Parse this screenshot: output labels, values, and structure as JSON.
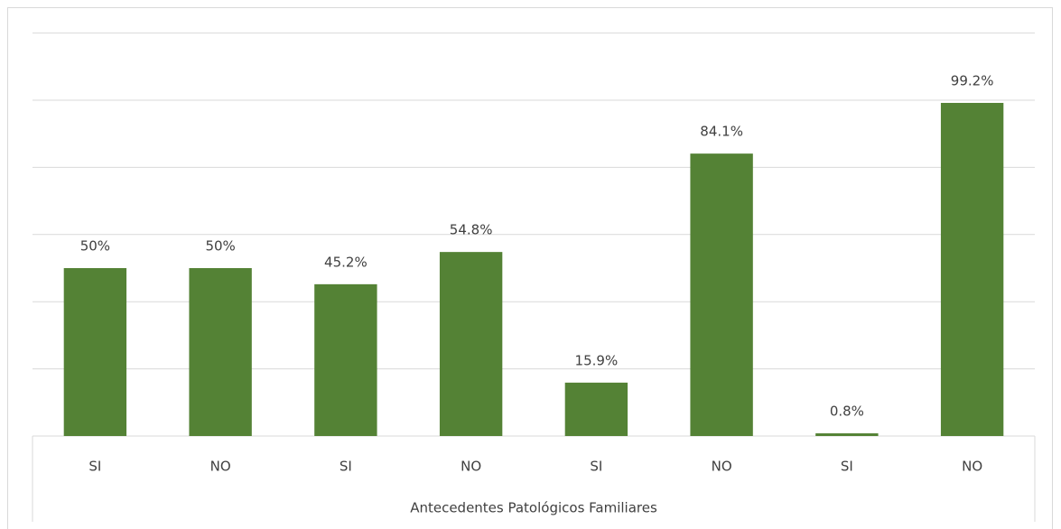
{
  "chart_data": {
    "type": "bar",
    "x_label": "Antecedentes Patológicos Familiares",
    "categories": [
      "SI",
      "NO",
      "SI",
      "NO",
      "SI",
      "NO",
      "SI",
      "NO"
    ],
    "values": [
      50,
      50,
      45.2,
      54.8,
      15.9,
      84.1,
      0.8,
      99.2
    ],
    "value_labels": [
      "50%",
      "50%",
      "45.2%",
      "54.8%",
      "15.9%",
      "84.1%",
      "0.8%",
      "99.2%"
    ],
    "color": "#548235",
    "ylim": [
      0,
      120
    ],
    "yticks": [
      0,
      20,
      40,
      60,
      80,
      100,
      120
    ],
    "grid": true
  }
}
